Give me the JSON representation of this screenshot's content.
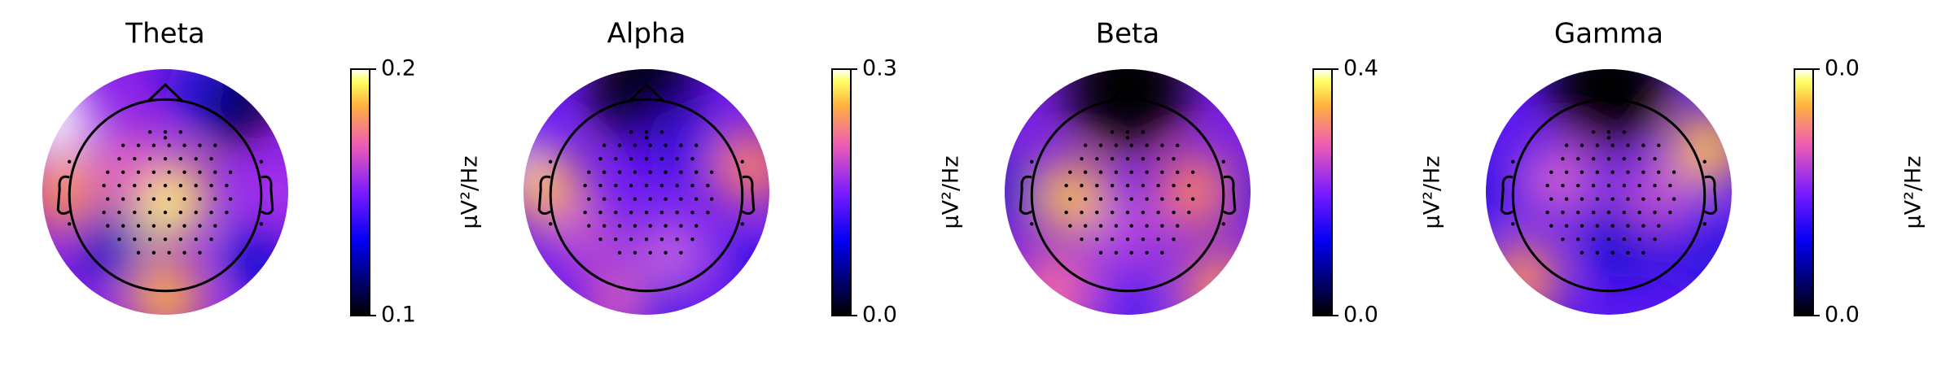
{
  "chart_data": [
    {
      "type": "topomap",
      "title": "Theta",
      "colormap": "gnuplot2",
      "colorbar_label": "µV²/Hz",
      "clim": [
        0.1,
        0.2
      ],
      "cticks": [
        0.1,
        0.2
      ]
    },
    {
      "type": "topomap",
      "title": "Alpha",
      "colormap": "gnuplot2",
      "colorbar_label": "µV²/Hz",
      "clim": [
        0,
        0.3
      ],
      "cticks": [
        {
          "value": 0,
          "label": "0.0"
        },
        0.3
      ]
    },
    {
      "type": "topomap",
      "title": "Beta",
      "colormap": "gnuplot2",
      "colorbar_label": "µV²/Hz",
      "clim": [
        0,
        0.4
      ],
      "cticks": [
        {
          "value": 0,
          "label": "0.0"
        },
        0.4
      ]
    },
    {
      "type": "topomap",
      "title": "Gamma",
      "colormap": "gnuplot2",
      "colorbar_label": "µV²/Hz",
      "clim": [
        0,
        0.04
      ],
      "cticks": [
        {
          "value": 0,
          "label": "0.0"
        },
        {
          "value": 0.04,
          "label": "0.0"
        }
      ]
    }
  ]
}
